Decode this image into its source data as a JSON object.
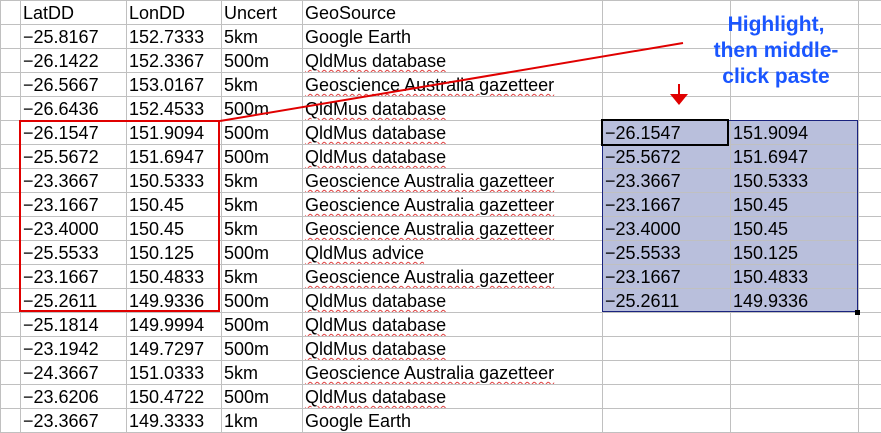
{
  "sheet": {
    "rows": [
      [
        "LatDD",
        "LonDD",
        "Uncert",
        "GeoSource"
      ],
      [
        "−25.8167",
        "152.7333",
        "5km",
        "Google Earth"
      ],
      [
        "−26.1422",
        "152.3367",
        "500m",
        "QldMus database"
      ],
      [
        "−26.5667",
        "153.0167",
        "5km",
        "Geoscience Australia gazetteer"
      ],
      [
        "−26.6436",
        "152.4533",
        "500m",
        "QldMus database"
      ],
      [
        "−26.1547",
        "151.9094",
        "500m",
        "QldMus database"
      ],
      [
        "−25.5672",
        "151.6947",
        "500m",
        "QldMus database"
      ],
      [
        "−23.3667",
        "150.5333",
        "5km",
        "Geoscience Australia gazetteer"
      ],
      [
        "−23.1667",
        "150.45",
        "5km",
        "Geoscience Australia gazetteer"
      ],
      [
        "−23.4000",
        "150.45",
        "5km",
        "Geoscience Australia gazetteer"
      ],
      [
        "−25.5533",
        "150.125",
        "500m",
        "QldMus advice"
      ],
      [
        "−23.1667",
        "150.4833",
        "5km",
        "Geoscience Australia gazetteer"
      ],
      [
        "−25.2611",
        "149.9336",
        "500m",
        "QldMus database"
      ],
      [
        "−25.1814",
        "149.9994",
        "500m",
        "QldMus database"
      ],
      [
        "−23.1942",
        "149.7297",
        "500m",
        "QldMus database"
      ],
      [
        "−24.3667",
        "151.0333",
        "5km",
        "Geoscience Australia gazetteer"
      ],
      [
        "−23.6206",
        "150.4722",
        "500m",
        "QldMus database"
      ],
      [
        "−23.3667",
        "149.3333",
        "1km",
        "Google Earth"
      ]
    ],
    "pasted": [
      [
        "−26.1547",
        "151.9094"
      ],
      [
        "−25.5672",
        "151.6947"
      ],
      [
        "−23.3667",
        "150.5333"
      ],
      [
        "−23.1667",
        "150.45"
      ],
      [
        "−23.4000",
        "150.45"
      ],
      [
        "−25.5533",
        "150.125"
      ],
      [
        "−23.1667",
        "150.4833"
      ],
      [
        "−25.2611",
        "149.9336"
      ]
    ],
    "pasted_start_row": 5
  },
  "annotation": {
    "text": "Highlight,\nthen middle-\nclick paste"
  },
  "colors": {
    "annotation_text": "#1a56ff",
    "annotation_arrow": "#e00000",
    "selection_fill": "#b9bfdc",
    "highlight_box": "#e00000"
  }
}
